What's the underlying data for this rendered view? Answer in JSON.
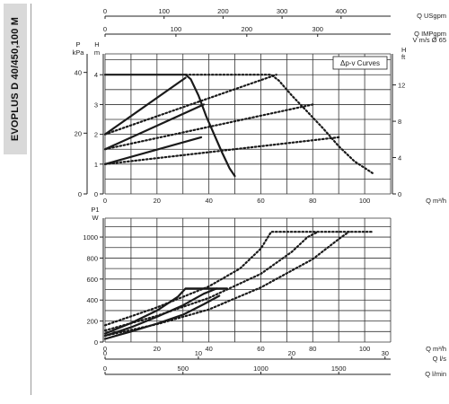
{
  "product": "EVOPLUS D 40/450,100 M",
  "legend_box": "Δp-v Curves",
  "chart_data": [
    {
      "type": "line",
      "name": "head",
      "x_axis": {
        "label": "Q m³/h",
        "range": [
          0,
          110
        ],
        "ticks": [
          "0",
          "20",
          "40",
          "60",
          "80",
          "100"
        ]
      },
      "x_top_axes": [
        {
          "label": "Q USgpm",
          "range": [
            0,
            484
          ],
          "ticks": [
            "0",
            "100",
            "200",
            "300",
            "400"
          ]
        },
        {
          "label": "Q IMPgpm",
          "range": [
            0,
            403
          ],
          "ticks": [
            "0",
            "100",
            "200",
            "300"
          ]
        }
      ],
      "velocity_label": "V m/s Ø 65",
      "y_left_axes": [
        {
          "label": "P kPa",
          "ticks": [
            "0",
            "20",
            "40"
          ]
        },
        {
          "label": "H m",
          "range": [
            0,
            4.7
          ],
          "ticks": [
            "0",
            "1",
            "2",
            "3",
            "4"
          ]
        }
      ],
      "y_right_axis": {
        "label": "H ft",
        "ticks": [
          "0",
          "4",
          "8",
          "12"
        ]
      },
      "series": [
        {
          "style": "solid",
          "points": [
            [
              0,
              4
            ],
            [
              31,
              4
            ],
            [
              33,
              3.85
            ],
            [
              36,
              3.3
            ],
            [
              39,
              2.6
            ],
            [
              42,
              2.0
            ],
            [
              45,
              1.4
            ],
            [
              48,
              0.85
            ],
            [
              50,
              0.6
            ]
          ]
        },
        {
          "style": "solid",
          "points": [
            [
              0,
              2.0
            ],
            [
              31,
              3.9
            ]
          ]
        },
        {
          "style": "solid",
          "points": [
            [
              0,
              1.5
            ],
            [
              38,
              3.0
            ]
          ]
        },
        {
          "style": "solid",
          "points": [
            [
              0,
              1.0
            ],
            [
              37,
              1.9
            ]
          ]
        },
        {
          "style": "dotted",
          "points": [
            [
              31,
              4
            ],
            [
              64,
              4
            ],
            [
              67,
              3.8
            ],
            [
              72,
              3.3
            ],
            [
              78,
              2.75
            ],
            [
              84,
              2.2
            ],
            [
              90,
              1.6
            ],
            [
              96,
              1.1
            ],
            [
              103,
              0.7
            ]
          ]
        },
        {
          "style": "dotted",
          "points": [
            [
              0,
              2.0
            ],
            [
              66,
              4.0
            ]
          ]
        },
        {
          "style": "dotted",
          "points": [
            [
              0,
              1.5
            ],
            [
              80,
              3.0
            ]
          ]
        },
        {
          "style": "dotted",
          "points": [
            [
              0,
              1.0
            ],
            [
              90,
              1.9
            ]
          ]
        }
      ]
    },
    {
      "type": "line",
      "name": "power",
      "x_axis": {
        "label": "Q m³/h",
        "range": [
          0,
          110
        ],
        "ticks": [
          "0",
          "20",
          "40",
          "60",
          "80",
          "100"
        ]
      },
      "x_bottom_axes": [
        {
          "label": "Q l/s",
          "range": [
            0,
            30.6
          ],
          "ticks": [
            "0",
            "10",
            "20",
            "30"
          ]
        },
        {
          "label": "Q l/min",
          "range": [
            0,
            1833
          ],
          "ticks": [
            "0",
            "500",
            "1000",
            "1500"
          ]
        }
      ],
      "y_axis": {
        "label": "P1 W",
        "range": [
          0,
          1180
        ],
        "ticks": [
          "0",
          "200",
          "400",
          "600",
          "800",
          "1000"
        ]
      },
      "series": [
        {
          "style": "solid",
          "points": [
            [
              0,
              80
            ],
            [
              10,
              180
            ],
            [
              20,
              300
            ],
            [
              28,
              430
            ],
            [
              31,
              510
            ],
            [
              34,
              510
            ],
            [
              47,
              510
            ]
          ]
        },
        {
          "style": "solid",
          "points": [
            [
              0,
              60
            ],
            [
              10,
              140
            ],
            [
              20,
              240
            ],
            [
              30,
              350
            ],
            [
              38,
              460
            ],
            [
              43,
              510
            ]
          ]
        },
        {
          "style": "solid",
          "points": [
            [
              0,
              30
            ],
            [
              10,
              100
            ],
            [
              20,
              175
            ],
            [
              30,
              260
            ],
            [
              38,
              360
            ],
            [
              44,
              440
            ]
          ]
        },
        {
          "style": "dotted",
          "points": [
            [
              0,
              160
            ],
            [
              20,
              330
            ],
            [
              40,
              530
            ],
            [
              52,
              700
            ],
            [
              60,
              890
            ],
            [
              64,
              1050
            ],
            [
              103,
              1050
            ]
          ]
        },
        {
          "style": "dotted",
          "points": [
            [
              0,
              110
            ],
            [
              20,
              250
            ],
            [
              40,
              420
            ],
            [
              60,
              650
            ],
            [
              72,
              860
            ],
            [
              78,
              1000
            ],
            [
              82,
              1050
            ]
          ]
        },
        {
          "style": "dotted",
          "points": [
            [
              0,
              60
            ],
            [
              20,
              170
            ],
            [
              40,
              310
            ],
            [
              60,
              520
            ],
            [
              80,
              790
            ],
            [
              91,
              1000
            ],
            [
              94,
              1050
            ]
          ]
        }
      ]
    }
  ]
}
